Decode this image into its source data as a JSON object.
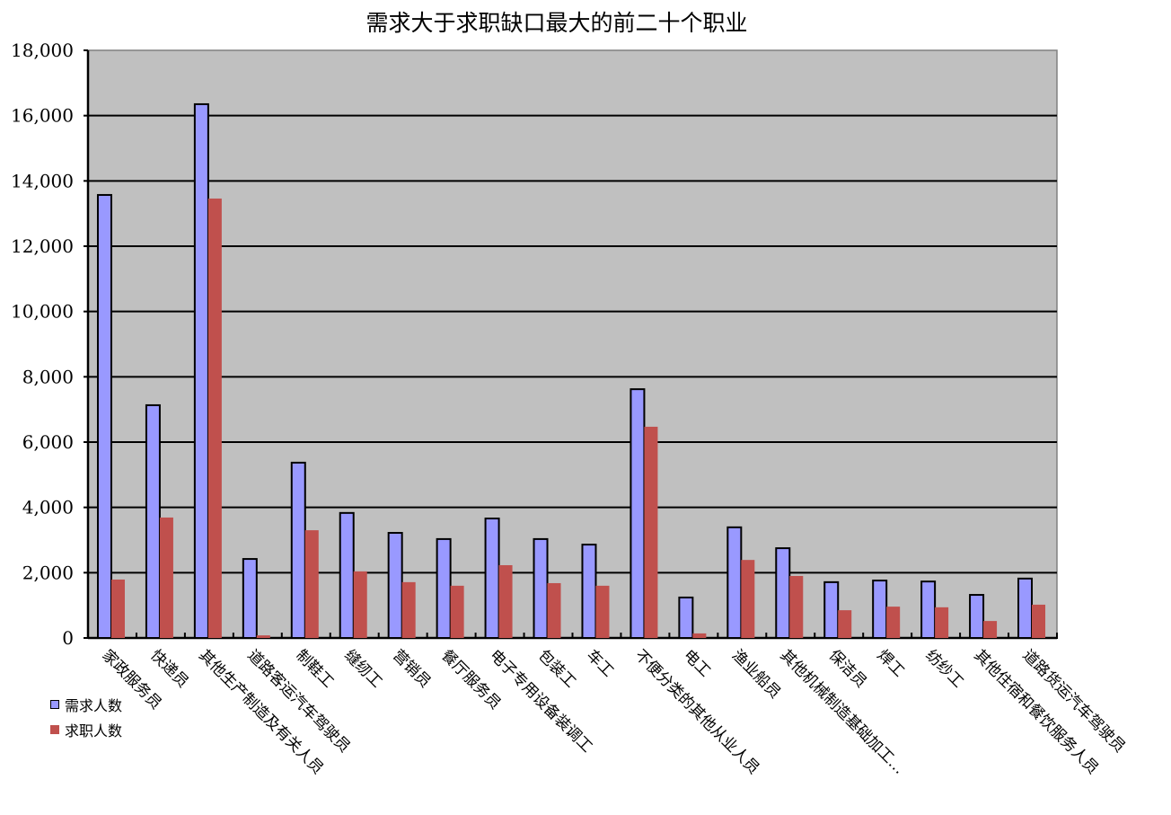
{
  "chart_data": {
    "type": "bar",
    "title": "需求大于求职缺口最大的前二十个职业",
    "xlabel": "",
    "ylabel": "",
    "ylim": [
      0,
      18000
    ],
    "yticks": [
      0,
      2000,
      4000,
      6000,
      8000,
      10000,
      12000,
      14000,
      16000,
      18000
    ],
    "ytick_labels": [
      "0",
      "2,000",
      "4,000",
      "6,000",
      "8,000",
      "10,000",
      "12,000",
      "14,000",
      "16,000",
      "18,000"
    ],
    "grid": true,
    "legend_position": "bottom-left",
    "categories": [
      "家政服务员",
      "快递员",
      "其他生产制造及有关人员",
      "道路客运汽车驾驶员",
      "制鞋工",
      "缝纫工",
      "营销员",
      "餐厅服务员",
      "电子专用设备装调工",
      "包装工",
      "车工",
      "不便分类的其他从业人员",
      "电工",
      "渔业船员",
      "其他机械制造基础加工…",
      "保洁员",
      "焊工",
      "纺纱工",
      "其他住宿和餐饮服务人员",
      "道路货运汽车驾驶员"
    ],
    "series": [
      {
        "name": "需求人数",
        "color": "#9999ff",
        "values": [
          13570,
          7130,
          16350,
          2420,
          5370,
          3830,
          3220,
          3030,
          3660,
          3030,
          2860,
          7620,
          1240,
          3390,
          2750,
          1710,
          1760,
          1730,
          1320,
          1820
        ]
      },
      {
        "name": "求职人数",
        "color": "#c0504d",
        "values": [
          1790,
          3690,
          13460,
          80,
          3300,
          2040,
          1710,
          1600,
          2230,
          1680,
          1600,
          6470,
          140,
          2390,
          1900,
          850,
          960,
          940,
          520,
          1020
        ]
      }
    ]
  },
  "colors": {
    "plot_background": "#c0c0c0",
    "gridline": "#000000",
    "demand_bar": "#9999ff",
    "supply_bar": "#c0504d"
  }
}
